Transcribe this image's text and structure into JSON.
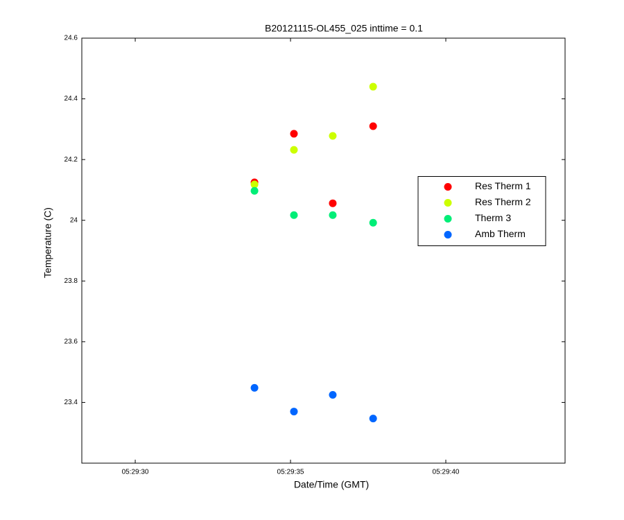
{
  "chart_data": {
    "type": "scatter",
    "title": "B20121115-OL455_025 inttime = 0.1",
    "x_label": "Date/Time (GMT)",
    "y_label": "Temperature (C)",
    "x": [
      33.84,
      35.11,
      36.36,
      37.66
    ],
    "xlim": [
      28.28,
      43.84
    ],
    "xticks": [
      {
        "value": 30,
        "label": "05:29:30"
      },
      {
        "value": 35,
        "label": "05:29:35"
      },
      {
        "value": 40,
        "label": "05:29:40"
      }
    ],
    "ylim": [
      23.2,
      24.6
    ],
    "yticks": [
      23.4,
      23.6,
      23.8,
      24,
      24.2,
      24.4,
      24.6
    ],
    "legend": "east",
    "series": [
      {
        "name": "Res Therm 1",
        "color": "#ff0000",
        "values": [
          24.125,
          24.285,
          24.056,
          24.31
        ]
      },
      {
        "name": "Res Therm 2",
        "color": "#ccff00",
        "values": [
          24.118,
          24.232,
          24.278,
          24.44
        ]
      },
      {
        "name": "Therm 3",
        "color": "#00ee77",
        "values": [
          24.097,
          24.017,
          24.017,
          23.992
        ]
      },
      {
        "name": "Amb Therm",
        "color": "#0066ff",
        "values": [
          23.448,
          23.37,
          23.425,
          23.347
        ]
      }
    ]
  }
}
